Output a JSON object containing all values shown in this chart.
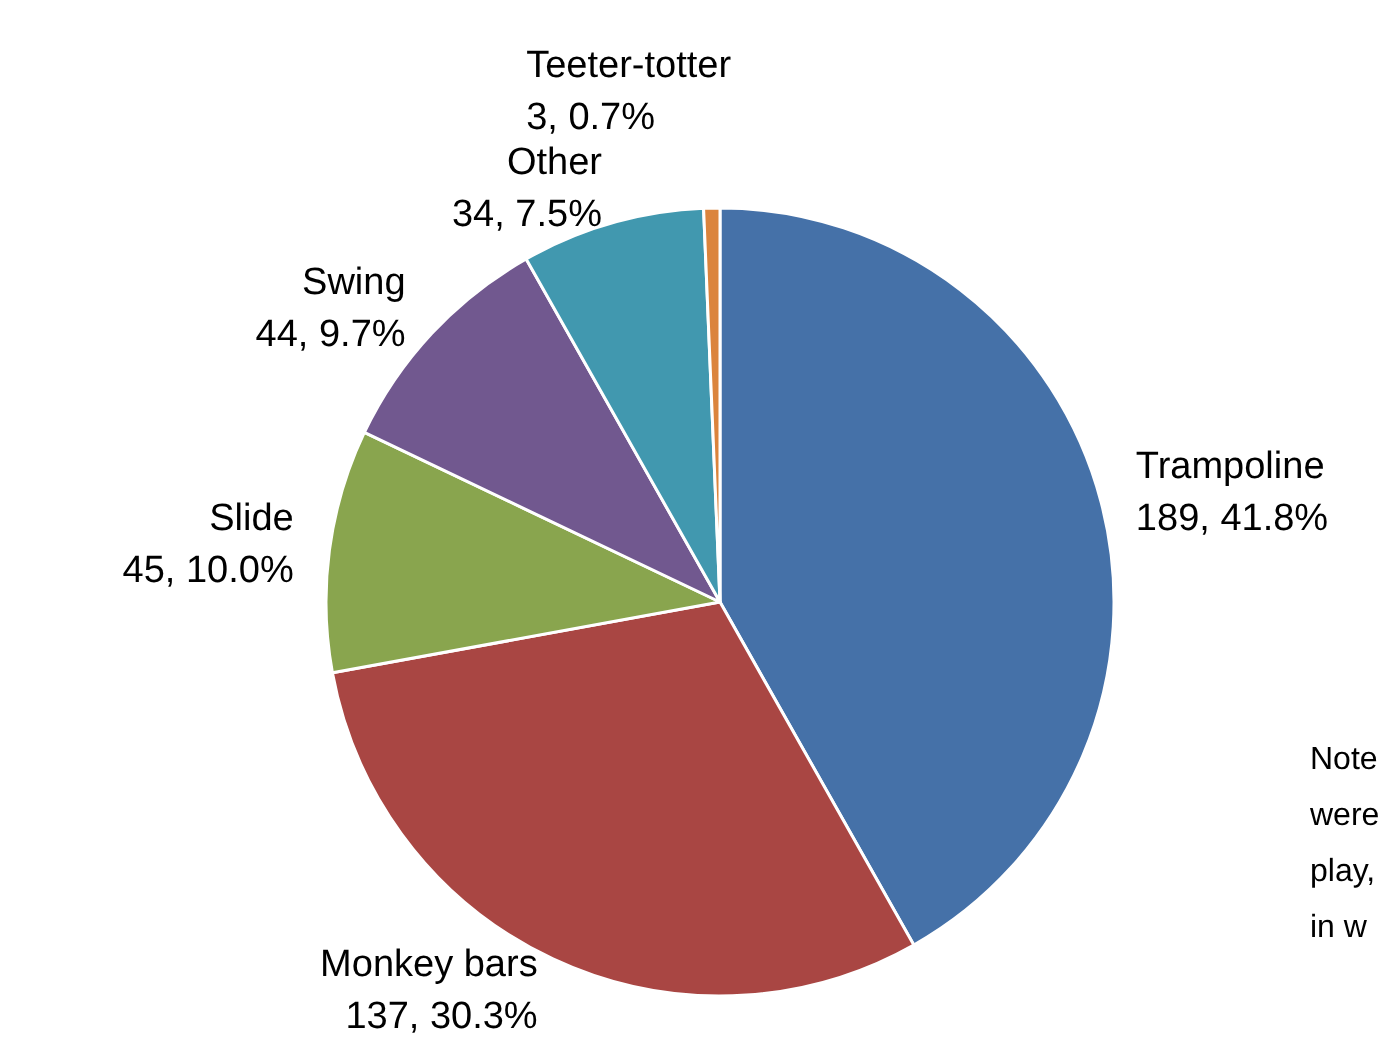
{
  "chart_data": {
    "type": "pie",
    "categories": [
      "Trampoline",
      "Monkey bars",
      "Slide",
      "Swing",
      "Other",
      "Teeter-totter"
    ],
    "values": [
      189,
      137,
      45,
      44,
      34,
      3
    ],
    "colors": [
      "#4571a8",
      "#a94643",
      "#89a54e",
      "#71588f",
      "#4198af",
      "#db843d"
    ],
    "value_labels": [
      "189, 41.8%",
      "137, 30.3%",
      "45, 10.0%",
      "44, 9.7%",
      "34, 7.5%",
      "3, 0.7%"
    ],
    "annotations": [
      "Note",
      "were",
      "play,",
      "in w"
    ],
    "legend": false
  }
}
